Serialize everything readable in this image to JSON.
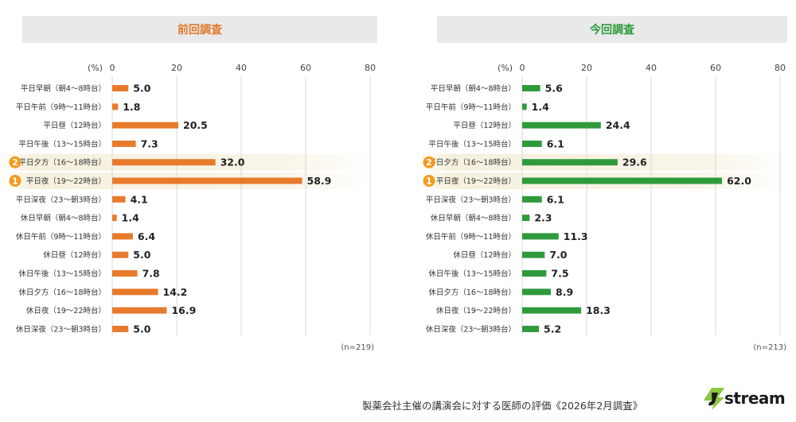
{
  "footer": "製薬会社主催の講演会に対する医師の評価《2026年2月調査》",
  "logo_text": "stream",
  "colors": {
    "previous": "#e87a2c",
    "current": "#2f9a3c",
    "rank_badge": "#f39a1c",
    "header_bg": "#e9e9e9"
  },
  "chart_data": [
    {
      "type": "bar",
      "orientation": "horizontal",
      "title": "前回調査",
      "unit_label": "(%)",
      "xlim": [
        0,
        80
      ],
      "xticks": [
        0,
        20,
        40,
        60,
        80
      ],
      "grid": true,
      "n_label": "(n=219)",
      "categories": [
        "平日早朝（朝4〜8時台）",
        "平日午前（9時〜11時台）",
        "平日昼（12時台）",
        "平日午後（13〜15時台）",
        "平日夕方（16〜18時台）",
        "平日夜（19〜22時台）",
        "平日深夜（23〜朝3時台）",
        "休日早朝（朝4〜8時台）",
        "休日午前（9時〜11時台）",
        "休日昼（12時台）",
        "休日午後（13〜15時台）",
        "休日夕方（16〜18時台）",
        "休日夜（19〜22時台）",
        "休日深夜（23〜朝3時台）"
      ],
      "values": [
        5.0,
        1.8,
        20.5,
        7.3,
        32.0,
        58.9,
        4.1,
        1.4,
        6.4,
        5.0,
        7.8,
        14.2,
        16.9,
        5.0
      ],
      "value_labels": [
        "5.0",
        "1.8",
        "20.5",
        "7.3",
        "32.0",
        "58.9",
        "4.1",
        "1.4",
        "6.4",
        "5.0",
        "7.8",
        "14.2",
        "16.9",
        "5.0"
      ],
      "ranks": [
        {
          "index": 5,
          "rank": "1"
        },
        {
          "index": 4,
          "rank": "2"
        }
      ]
    },
    {
      "type": "bar",
      "orientation": "horizontal",
      "title": "今回調査",
      "unit_label": "(%)",
      "xlim": [
        0,
        80
      ],
      "xticks": [
        0,
        20,
        40,
        60,
        80
      ],
      "grid": true,
      "n_label": "(n=213)",
      "categories": [
        "平日早朝（朝4〜8時台）",
        "平日午前（9時〜11時台）",
        "平日昼（12時台）",
        "平日午後（13〜15時台）",
        "平日夕方（16〜18時台）",
        "平日夜（19〜22時台）",
        "平日深夜（23〜朝3時台）",
        "休日早朝（朝4〜8時台）",
        "休日午前（9時〜11時台）",
        "休日昼（12時台）",
        "休日午後（13〜15時台）",
        "休日夕方（16〜18時台）",
        "休日夜（19〜22時台）",
        "休日深夜（23〜朝3時台）"
      ],
      "values": [
        5.6,
        1.4,
        24.4,
        6.1,
        29.6,
        62.0,
        6.1,
        2.3,
        11.3,
        7.0,
        7.5,
        8.9,
        18.3,
        5.2
      ],
      "value_labels": [
        "5.6",
        "1.4",
        "24.4",
        "6.1",
        "29.6",
        "62.0",
        "6.1",
        "2.3",
        "11.3",
        "7.0",
        "7.5",
        "8.9",
        "18.3",
        "5.2"
      ],
      "ranks": [
        {
          "index": 5,
          "rank": "1"
        },
        {
          "index": 4,
          "rank": "2"
        }
      ]
    }
  ]
}
